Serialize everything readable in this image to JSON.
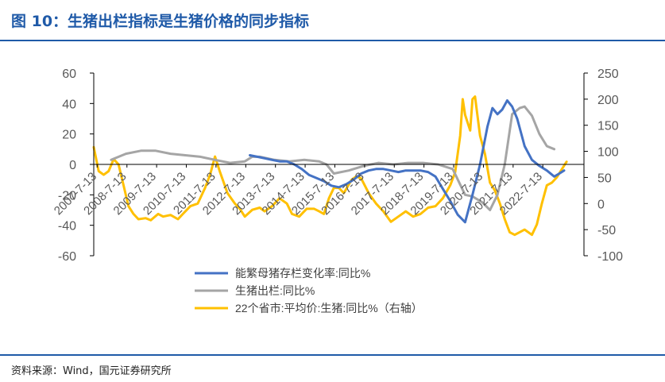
{
  "header": {
    "title": "图 10：生猪出栏指标是生猪价格的同步指标"
  },
  "footer": {
    "source": "资料来源：Wind，国元证券研究所"
  },
  "colors": {
    "title": "#1f5aa8",
    "sow": "#4472C4",
    "output": "#A5A5A5",
    "price": "#FFC000"
  },
  "chart_data": {
    "type": "line",
    "left_axis": {
      "ylim": [
        -60,
        60
      ],
      "ticks": [
        -60,
        -40,
        -20,
        0,
        20,
        40,
        60
      ]
    },
    "right_axis": {
      "ylim": [
        -100,
        250
      ],
      "ticks": [
        -100,
        -50,
        0,
        50,
        100,
        150,
        200,
        250
      ]
    },
    "x_range": [
      "2007-06-01",
      "2023-12-01"
    ],
    "x_tick_labels": [
      "2007-7-13",
      "2008-7-13",
      "2009-7-13",
      "2010-7-13",
      "2011-7-13",
      "2012-7-13",
      "2013-7-13",
      "2014-7-13",
      "2015-7-13",
      "2016-7-13",
      "2017-7-13",
      "2018-7-13",
      "2019-7-13",
      "2020-7-13",
      "2021-7-13",
      "2022-7-13"
    ],
    "legend_position": "bottom",
    "series": [
      {
        "name": "能繁母猪存栏变化率:同比%",
        "axis": "left",
        "color": "#4472C4",
        "points": [
          [
            "2012-09-01",
            6
          ],
          [
            "2012-12-01",
            5
          ],
          [
            "2013-03-01",
            4
          ],
          [
            "2013-06-01",
            3
          ],
          [
            "2013-09-01",
            2
          ],
          [
            "2013-12-01",
            2
          ],
          [
            "2014-03-01",
            0
          ],
          [
            "2014-06-01",
            -3
          ],
          [
            "2014-09-01",
            -7
          ],
          [
            "2014-12-01",
            -9
          ],
          [
            "2015-03-01",
            -11
          ],
          [
            "2015-06-01",
            -14
          ],
          [
            "2015-09-01",
            -15
          ],
          [
            "2015-12-01",
            -13
          ],
          [
            "2016-03-01",
            -10
          ],
          [
            "2016-06-01",
            -6
          ],
          [
            "2016-09-01",
            -4
          ],
          [
            "2016-12-01",
            -3
          ],
          [
            "2017-03-01",
            -3
          ],
          [
            "2017-06-01",
            -4
          ],
          [
            "2017-09-01",
            -5
          ],
          [
            "2017-12-01",
            -4
          ],
          [
            "2018-03-01",
            -4
          ],
          [
            "2018-06-01",
            -4
          ],
          [
            "2018-09-01",
            -5
          ],
          [
            "2018-12-01",
            -8
          ],
          [
            "2019-03-01",
            -16
          ],
          [
            "2019-06-01",
            -24
          ],
          [
            "2019-09-01",
            -33
          ],
          [
            "2019-12-01",
            -38
          ],
          [
            "2020-03-01",
            -20
          ],
          [
            "2020-06-01",
            0
          ],
          [
            "2020-09-01",
            25
          ],
          [
            "2020-11-01",
            37
          ],
          [
            "2021-01-01",
            33
          ],
          [
            "2021-03-01",
            36
          ],
          [
            "2021-05-01",
            42
          ],
          [
            "2021-07-01",
            38
          ],
          [
            "2021-09-01",
            30
          ],
          [
            "2021-12-01",
            12
          ],
          [
            "2022-03-01",
            3
          ],
          [
            "2022-06-01",
            -1
          ],
          [
            "2022-09-01",
            -4
          ],
          [
            "2022-12-01",
            -8
          ],
          [
            "2023-02-01",
            -6
          ],
          [
            "2023-04-01",
            -4
          ]
        ]
      },
      {
        "name": "生猪出栏:同比%",
        "axis": "left",
        "color": "#A5A5A5",
        "points": [
          [
            "2008-01-01",
            3
          ],
          [
            "2008-07-01",
            7
          ],
          [
            "2009-01-01",
            9
          ],
          [
            "2009-07-01",
            9
          ],
          [
            "2010-01-01",
            7
          ],
          [
            "2010-07-01",
            6
          ],
          [
            "2011-01-01",
            5
          ],
          [
            "2011-07-01",
            3
          ],
          [
            "2012-01-01",
            1
          ],
          [
            "2012-07-01",
            2
          ],
          [
            "2012-10-01",
            5
          ],
          [
            "2013-01-01",
            5
          ],
          [
            "2013-07-01",
            3
          ],
          [
            "2014-01-01",
            2
          ],
          [
            "2014-07-01",
            3
          ],
          [
            "2015-01-01",
            2
          ],
          [
            "2015-04-01",
            0
          ],
          [
            "2015-07-01",
            -6
          ],
          [
            "2016-01-01",
            -4
          ],
          [
            "2016-07-01",
            -1
          ],
          [
            "2017-01-01",
            1
          ],
          [
            "2017-07-01",
            0
          ],
          [
            "2018-01-01",
            1
          ],
          [
            "2018-07-01",
            1
          ],
          [
            "2019-01-01",
            0
          ],
          [
            "2019-07-01",
            -3
          ],
          [
            "2019-12-01",
            -20
          ],
          [
            "2020-03-01",
            -21
          ],
          [
            "2020-07-01",
            -25
          ],
          [
            "2020-10-01",
            -30
          ],
          [
            "2021-01-01",
            -20
          ],
          [
            "2021-04-01",
            0
          ],
          [
            "2021-07-01",
            33
          ],
          [
            "2021-10-01",
            37
          ],
          [
            "2021-12-01",
            38
          ],
          [
            "2022-03-01",
            32
          ],
          [
            "2022-06-01",
            20
          ],
          [
            "2022-09-01",
            12
          ],
          [
            "2022-12-01",
            10
          ]
        ]
      },
      {
        "name": "22个省市:平均价:生猪:同比%（右轴）",
        "axis": "right",
        "color": "#FFC000",
        "points": [
          [
            "2007-06-01",
            108
          ],
          [
            "2007-08-01",
            62
          ],
          [
            "2007-10-01",
            55
          ],
          [
            "2007-12-01",
            62
          ],
          [
            "2008-02-01",
            85
          ],
          [
            "2008-04-01",
            75
          ],
          [
            "2008-06-01",
            35
          ],
          [
            "2008-08-01",
            -5
          ],
          [
            "2008-10-01",
            -20
          ],
          [
            "2008-12-01",
            -30
          ],
          [
            "2009-03-01",
            -28
          ],
          [
            "2009-05-01",
            -32
          ],
          [
            "2009-08-01",
            -20
          ],
          [
            "2009-10-01",
            -25
          ],
          [
            "2010-01-01",
            -22
          ],
          [
            "2010-04-01",
            -30
          ],
          [
            "2010-06-01",
            -20
          ],
          [
            "2010-09-01",
            -5
          ],
          [
            "2010-12-01",
            0
          ],
          [
            "2011-03-01",
            30
          ],
          [
            "2011-05-01",
            55
          ],
          [
            "2011-07-01",
            90
          ],
          [
            "2011-09-01",
            60
          ],
          [
            "2011-12-01",
            20
          ],
          [
            "2012-03-01",
            0
          ],
          [
            "2012-05-01",
            -10
          ],
          [
            "2012-07-01",
            -25
          ],
          [
            "2012-10-01",
            -12
          ],
          [
            "2013-01-01",
            -8
          ],
          [
            "2013-03-01",
            -15
          ],
          [
            "2013-06-01",
            -5
          ],
          [
            "2013-09-01",
            10
          ],
          [
            "2013-12-01",
            0
          ],
          [
            "2014-02-01",
            -20
          ],
          [
            "2014-05-01",
            -25
          ],
          [
            "2014-08-01",
            -10
          ],
          [
            "2014-11-01",
            -10
          ],
          [
            "2015-01-01",
            -15
          ],
          [
            "2015-03-01",
            -20
          ],
          [
            "2015-05-01",
            10
          ],
          [
            "2015-07-01",
            30
          ],
          [
            "2015-09-01",
            30
          ],
          [
            "2015-11-01",
            20
          ],
          [
            "2016-02-01",
            45
          ],
          [
            "2016-04-01",
            52
          ],
          [
            "2016-06-01",
            48
          ],
          [
            "2016-09-01",
            20
          ],
          [
            "2016-12-01",
            0
          ],
          [
            "2017-03-01",
            -15
          ],
          [
            "2017-06-01",
            -35
          ],
          [
            "2017-09-01",
            -25
          ],
          [
            "2017-12-01",
            -15
          ],
          [
            "2018-03-01",
            -25
          ],
          [
            "2018-06-01",
            -20
          ],
          [
            "2018-09-01",
            -8
          ],
          [
            "2018-12-01",
            -5
          ],
          [
            "2019-03-01",
            10
          ],
          [
            "2019-06-01",
            35
          ],
          [
            "2019-08-01",
            60
          ],
          [
            "2019-10-01",
            130
          ],
          [
            "2019-11-01",
            200
          ],
          [
            "2019-12-01",
            170
          ],
          [
            "2020-02-01",
            140
          ],
          [
            "2020-03-01",
            200
          ],
          [
            "2020-04-01",
            205
          ],
          [
            "2020-06-01",
            130
          ],
          [
            "2020-08-01",
            95
          ],
          [
            "2020-10-01",
            40
          ],
          [
            "2020-12-01",
            25
          ],
          [
            "2021-02-01",
            0
          ],
          [
            "2021-04-01",
            -30
          ],
          [
            "2021-06-01",
            -55
          ],
          [
            "2021-08-01",
            -60
          ],
          [
            "2021-10-01",
            -55
          ],
          [
            "2021-12-01",
            -50
          ],
          [
            "2022-03-01",
            -60
          ],
          [
            "2022-05-01",
            -40
          ],
          [
            "2022-07-01",
            0
          ],
          [
            "2022-09-01",
            35
          ],
          [
            "2022-11-01",
            40
          ],
          [
            "2023-01-01",
            50
          ],
          [
            "2023-03-01",
            65
          ],
          [
            "2023-05-01",
            80
          ]
        ]
      }
    ]
  }
}
